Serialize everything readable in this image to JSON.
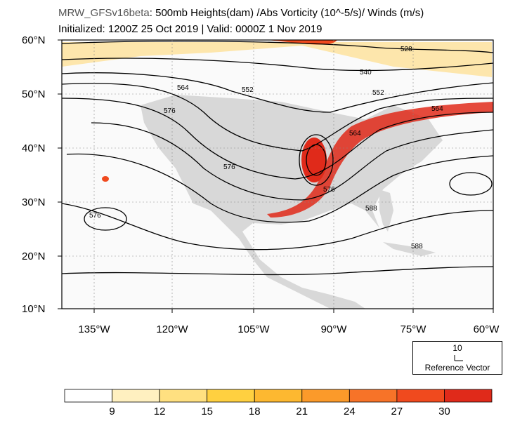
{
  "title": {
    "model": "MRW_GFSv16beta",
    "fields": ": 500mb Heights(dam) /Abs Vorticity (10^-5/s)/ Winds (m/s)",
    "line2": "Initialized: 1200Z 25 Oct 2019 | Valid: 0000Z 1 Nov 2019"
  },
  "axes": {
    "lat_labels": [
      "60°N",
      "50°N",
      "40°N",
      "30°N",
      "20°N",
      "10°N"
    ],
    "lon_labels": [
      "135°W",
      "120°W",
      "105°W",
      "90°W",
      "75°W",
      "60°W"
    ]
  },
  "contour_labels": [
    "528",
    "540",
    "552",
    "552",
    "564",
    "564",
    "564",
    "576",
    "576",
    "576",
    "576",
    "588",
    "588"
  ],
  "reference_vector": {
    "magnitude": "10",
    "caption": "Reference Vector"
  },
  "colorbar": {
    "levels": [
      "9",
      "12",
      "15",
      "18",
      "21",
      "24",
      "27",
      "30"
    ],
    "colors": [
      "#ffffff",
      "#fff0c0",
      "#ffe080",
      "#ffd040",
      "#fdb830",
      "#fb9a2a",
      "#f77328",
      "#f04a1e",
      "#e02a1a"
    ]
  },
  "colors": {
    "land": "#d8d8d8",
    "contour": "#000000",
    "vorticity_max": "#e02a1a"
  }
}
